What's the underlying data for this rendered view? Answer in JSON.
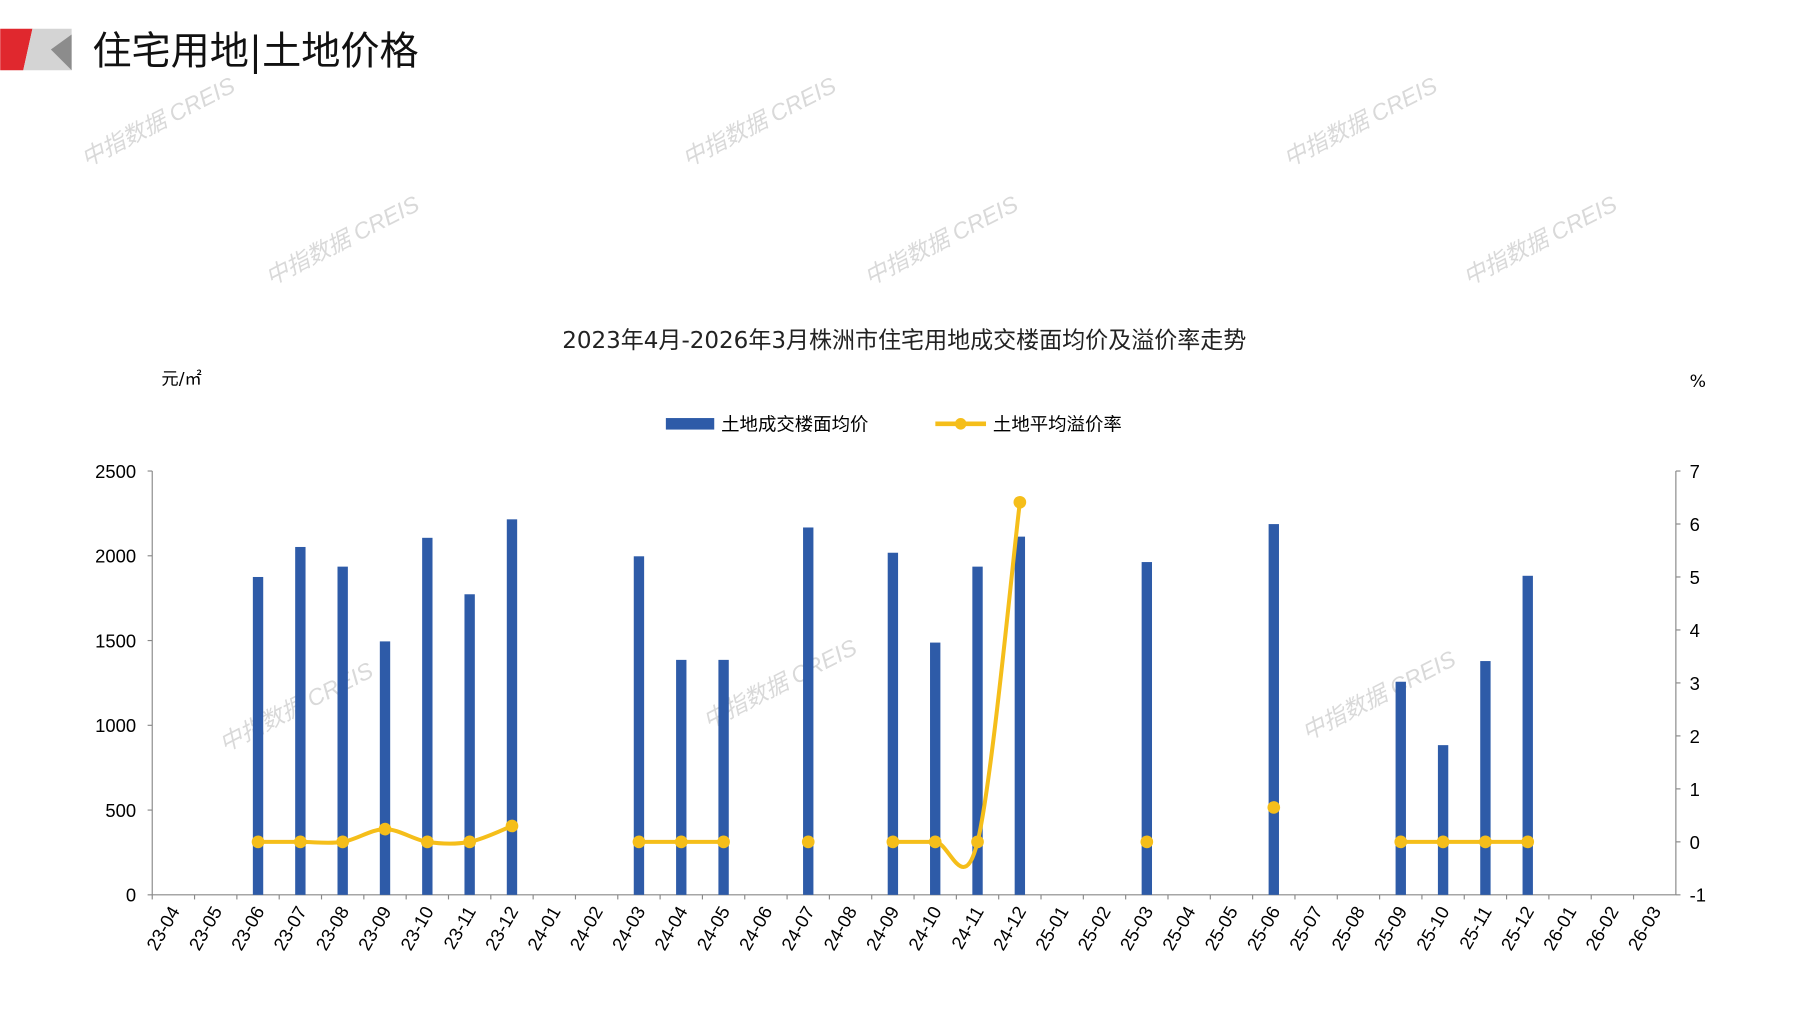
{
  "header": {
    "title": "住宅用地|土地价格",
    "logo_colors": [
      "#e0282e",
      "#8c8c8c",
      "#cfcfcf"
    ]
  },
  "watermark": "中指数据 CREIS",
  "chart_data": {
    "type": "bar+line",
    "title": "2023年4月-2026年3月株洲市住宅用地成交楼面均价及溢价率走势",
    "ylabel_left": "元/㎡",
    "ylabel_right": "%",
    "ylim_left": [
      0,
      2500
    ],
    "yticks_left": [
      0,
      500,
      1000,
      1500,
      2000,
      2500
    ],
    "ylim_right": [
      -1,
      7
    ],
    "yticks_right": [
      -1,
      0,
      1,
      2,
      3,
      4,
      5,
      6,
      7
    ],
    "grid": false,
    "legend_position": "top-center",
    "categories": [
      "23-04",
      "23-05",
      "23-06",
      "23-07",
      "23-08",
      "23-09",
      "23-10",
      "23-11",
      "23-12",
      "24-01",
      "24-02",
      "24-03",
      "24-04",
      "24-05",
      "24-06",
      "24-07",
      "24-08",
      "24-09",
      "24-10",
      "24-11",
      "24-12",
      "25-01",
      "25-02",
      "25-03",
      "25-04",
      "25-05",
      "25-06",
      "25-07",
      "25-08",
      "25-09",
      "25-10",
      "25-11",
      "25-12",
      "26-01",
      "26-02",
      "26-03"
    ],
    "series": [
      {
        "name": "土地成交楼面均价",
        "type": "bar",
        "axis": "left",
        "color": "#2e5ba8",
        "values": [
          null,
          null,
          1875,
          2052,
          1936,
          1495,
          2106,
          1773,
          2215,
          null,
          null,
          1997,
          1386,
          1386,
          null,
          2167,
          null,
          2018,
          1488,
          1936,
          2113,
          null,
          null,
          1963,
          null,
          null,
          2187,
          null,
          null,
          1257,
          883,
          1379,
          1882,
          null,
          null,
          null
        ]
      },
      {
        "name": "土地平均溢价率",
        "type": "line",
        "axis": "right",
        "color": "#f5be1a",
        "values": [
          null,
          null,
          0,
          0,
          0,
          0.24,
          0,
          0,
          0.3,
          null,
          null,
          0,
          0,
          0,
          null,
          0,
          null,
          0,
          0,
          0,
          6.41,
          null,
          null,
          0,
          null,
          null,
          0.65,
          null,
          null,
          0,
          0,
          0,
          0,
          null,
          null,
          null
        ]
      }
    ]
  }
}
